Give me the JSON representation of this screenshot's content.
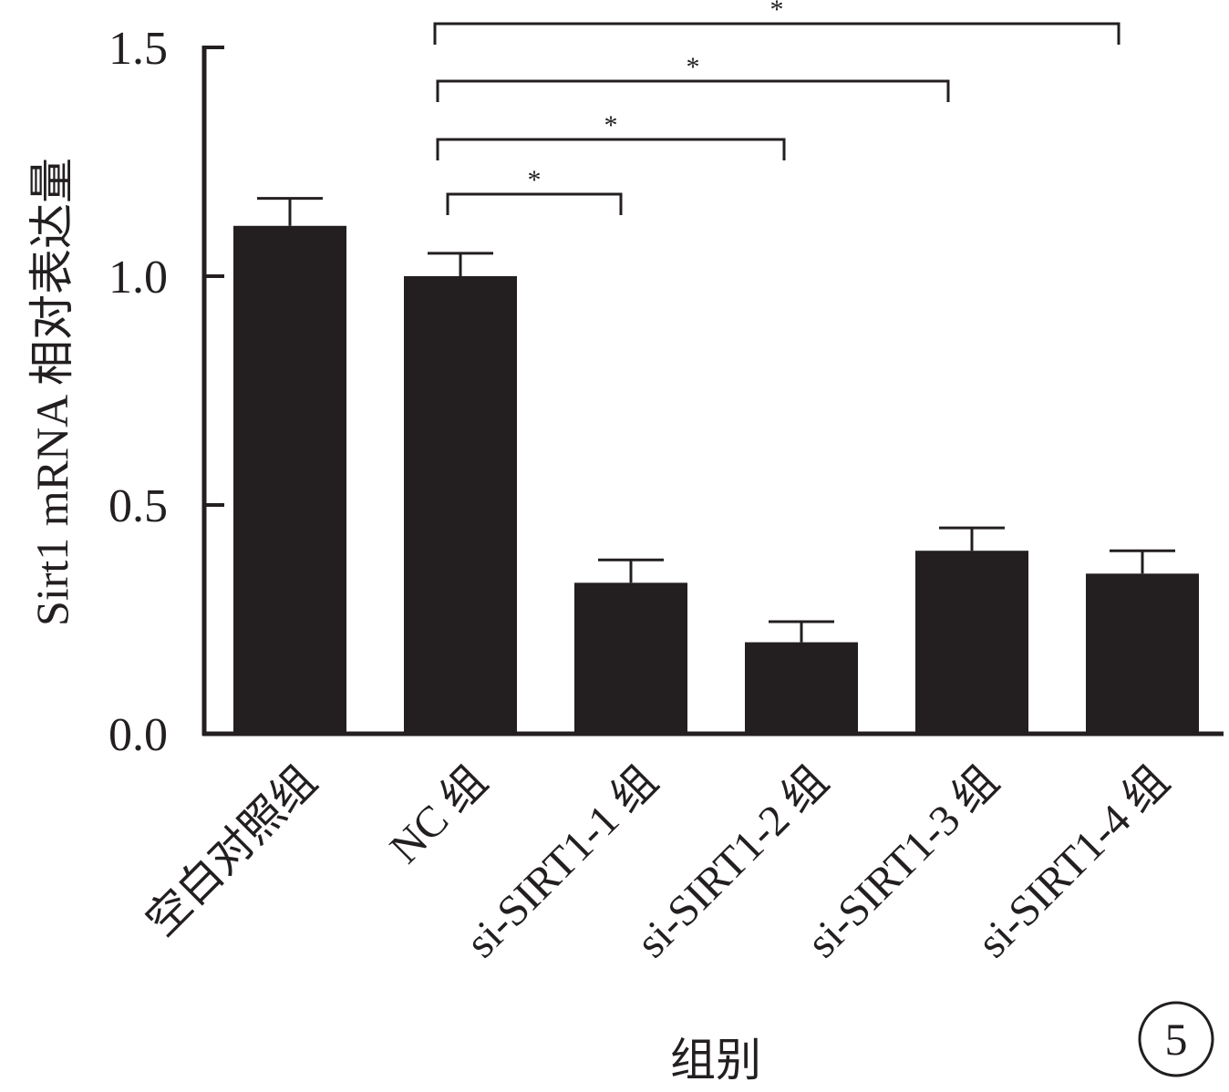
{
  "chart_data": {
    "type": "bar",
    "title": "",
    "categories": [
      "空白对照组",
      "NC 组",
      "si-SIRT1-1 组",
      "si-SIRT1-2 组",
      "si-SIRT1-3 组",
      "si-SIRT1-4 组"
    ],
    "series": [
      {
        "values": [
          1.11,
          1.0,
          0.33,
          0.2,
          0.4,
          0.35
        ],
        "error": [
          0.06,
          0.05,
          0.05,
          0.045,
          0.05,
          0.05
        ],
        "color": "#231f20"
      }
    ],
    "xlabel": "组别",
    "ylabel": "Sirt1 mRNA 相对表达量",
    "ylim": [
      0,
      1.5
    ],
    "yticks": [
      "0.0",
      "0.5",
      "1.0",
      "1.5"
    ],
    "grid": false,
    "significance": [
      {
        "from": "NC 组",
        "to": "si-SIRT1-1 组",
        "label": "*"
      },
      {
        "from": "NC 组",
        "to": "si-SIRT1-2 组",
        "label": "*"
      },
      {
        "from": "NC 组",
        "to": "si-SIRT1-3 组",
        "label": "*"
      },
      {
        "from": "NC 组",
        "to": "si-SIRT1-4 组",
        "label": "*"
      }
    ],
    "panel_number": "5"
  }
}
